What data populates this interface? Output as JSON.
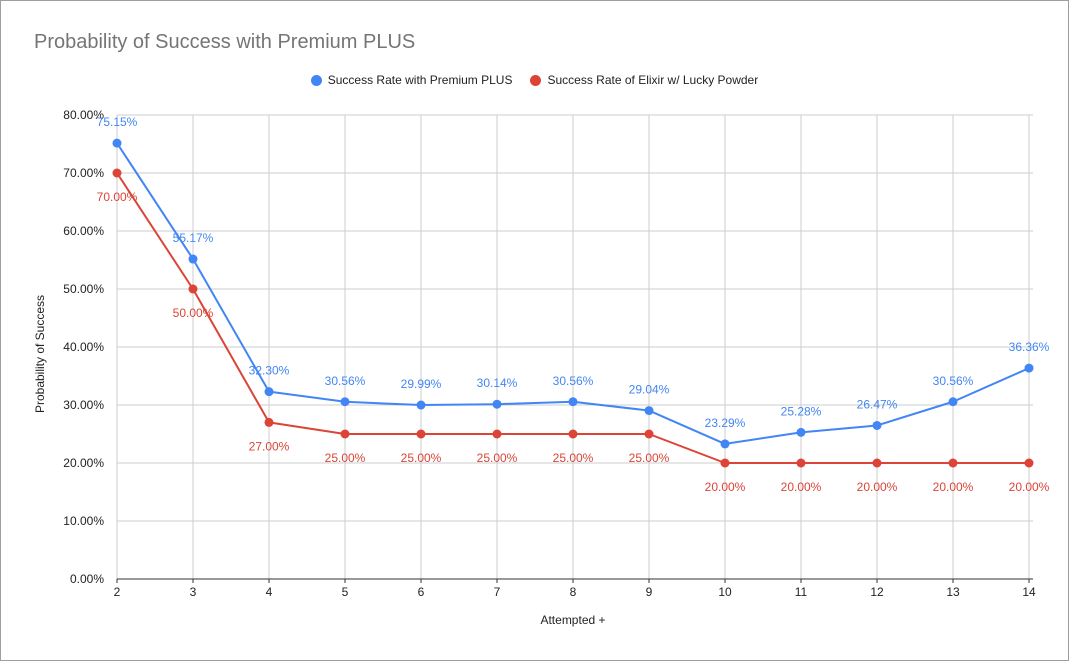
{
  "chart_data": {
    "type": "line",
    "title": "Probability of Success with Premium PLUS",
    "xlabel": "Attempted +",
    "ylabel": "Probability of Success",
    "categories": [
      "2",
      "3",
      "4",
      "5",
      "6",
      "7",
      "8",
      "9",
      "10",
      "11",
      "12",
      "13",
      "14"
    ],
    "ylim": [
      0,
      80
    ],
    "yticks": [
      "0.00%",
      "10.00%",
      "20.00%",
      "30.00%",
      "40.00%",
      "50.00%",
      "60.00%",
      "70.00%",
      "80.00%"
    ],
    "grid": true,
    "legend_position": "top",
    "series": [
      {
        "name": "Success Rate with Premium PLUS",
        "color": "#4285f4",
        "values": [
          75.15,
          55.17,
          32.3,
          30.56,
          29.99,
          30.14,
          30.56,
          29.04,
          23.29,
          25.28,
          26.47,
          30.56,
          36.36
        ],
        "labels": [
          "75.15%",
          "55.17%",
          "32.30%",
          "30.56%",
          "29.99%",
          "30.14%",
          "30.56%",
          "29.04%",
          "23.29%",
          "25.28%",
          "26.47%",
          "30.56%",
          "36.36%"
        ],
        "label_position": "above"
      },
      {
        "name": "Success Rate of Elixir w/ Lucky Powder",
        "color": "#db4437",
        "values": [
          70,
          50,
          27,
          25,
          25,
          25,
          25,
          25,
          20,
          20,
          20,
          20,
          20
        ],
        "labels": [
          "70.00%",
          "50.00%",
          "27.00%",
          "25.00%",
          "25.00%",
          "25.00%",
          "25.00%",
          "25.00%",
          "20.00%",
          "20.00%",
          "20.00%",
          "20.00%",
          "20.00%"
        ],
        "label_position": "below"
      }
    ]
  }
}
